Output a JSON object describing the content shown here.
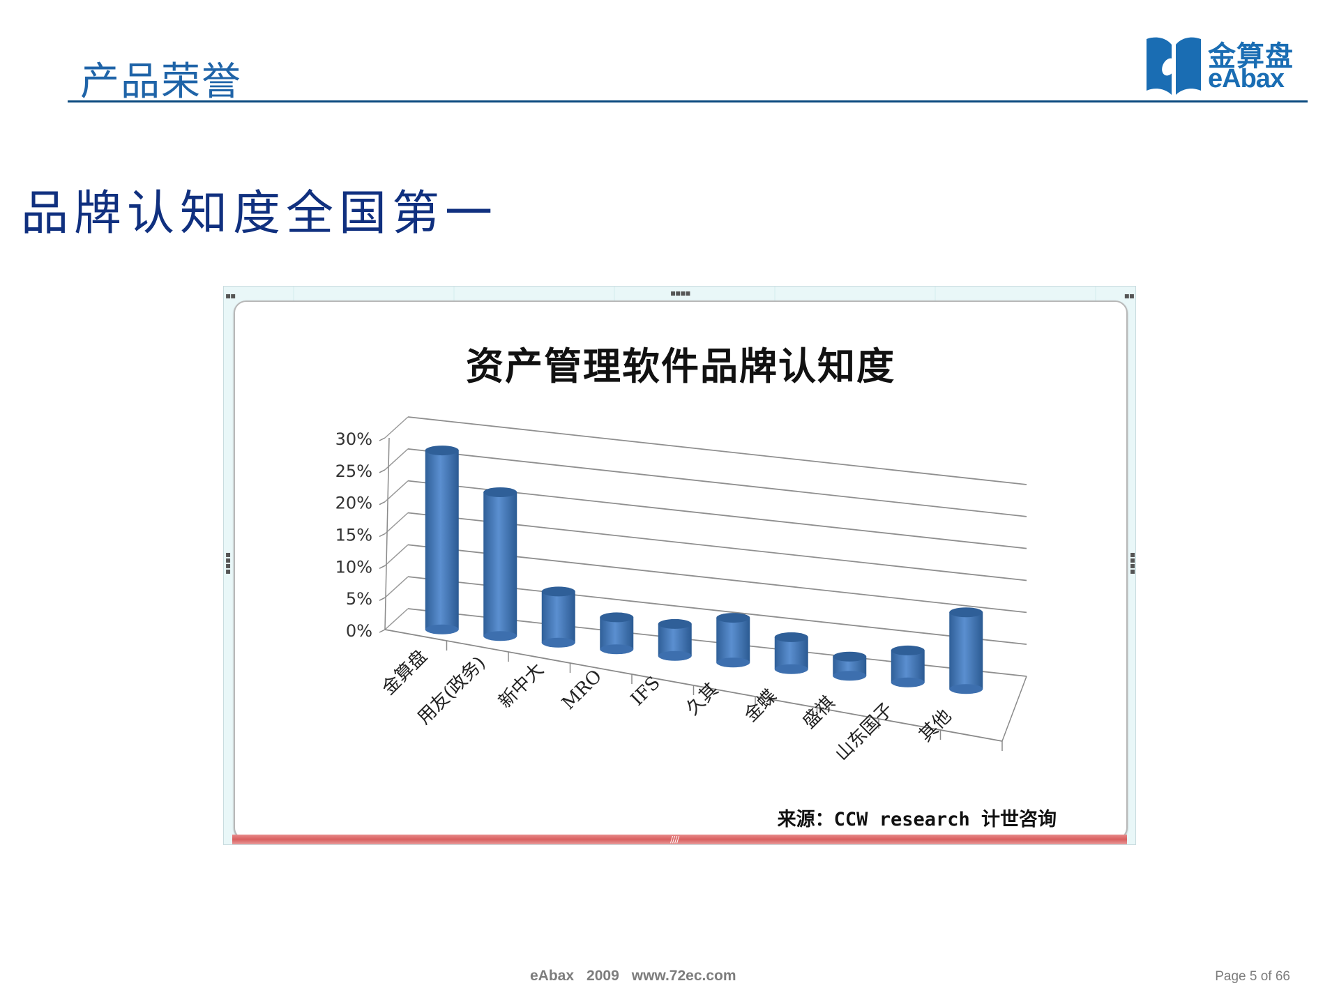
{
  "header": {
    "section_title": "产品荣誉",
    "logo": {
      "cn": "金算盘",
      "en": "eAbax",
      "color": "#1a6db3"
    }
  },
  "headline": "品牌认知度全国第一",
  "chart": {
    "title": "资产管理软件品牌认知度",
    "source": "来源：CCW research 计世咨询",
    "bar_color": "#4f81bd"
  },
  "chart_data": {
    "type": "bar",
    "subtype": "3d-cylinder",
    "title": "资产管理软件品牌认知度",
    "categories": [
      "金算盘",
      "用友(政务)",
      "新中大",
      "MRO",
      "IFS",
      "久其",
      "金蝶",
      "盛祺",
      "山东国子",
      "其他"
    ],
    "values": [
      0.28,
      0.225,
      0.08,
      0.05,
      0.05,
      0.07,
      0.05,
      0.03,
      0.05,
      0.12
    ],
    "xlabel": "",
    "ylabel": "",
    "ylim": [
      0,
      0.3
    ],
    "yticks": [
      "0%",
      "5%",
      "10%",
      "15%",
      "20%",
      "25%",
      "30%"
    ],
    "grid": true,
    "legend": "none",
    "annotation": "来源：CCW research 计世咨询"
  },
  "footer": {
    "brand": "eAbax",
    "year": "2009",
    "url": "www.72ec.com",
    "page": "Page 5 of 66"
  }
}
